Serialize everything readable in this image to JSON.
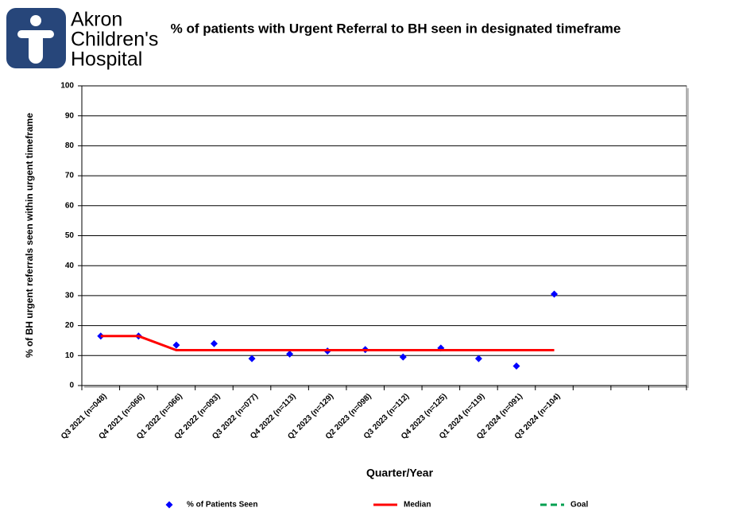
{
  "logo": {
    "lines": [
      "Akron",
      "Children's",
      "Hospital"
    ]
  },
  "chart_data": {
    "type": "line",
    "title": "% of patients with Urgent Referral to BH seen in designated timeframe",
    "x_label": "Quarter/Year",
    "y_label": "% of BH urgent referrals seen within urgent timeframe",
    "categories": [
      "Q3 2021 (n=048)",
      "Q4 2021 (n=066)",
      "Q1 2022 (n=066)",
      "Q2 2022 (n=093)",
      "Q3 2022 (n=077)",
      "Q4 2022 (n=113)",
      "Q1 2023 (n=129)",
      "Q2 2023 (n=098)",
      "Q3 2023 (n=112)",
      "Q4 2023  (n=125)",
      "Q1 2024  (n=119)",
      "Q2 2024 (n=091)",
      "Q3 2024 (n=104)",
      null,
      null,
      null
    ],
    "series": [
      {
        "name": "% of Patients Seen",
        "color": "#0000ff",
        "marker": "diamond",
        "values": [
          16.5,
          16.5,
          13.5,
          14,
          9,
          10.5,
          11.5,
          12,
          9.5,
          12.5,
          9,
          6.5,
          30.5,
          null,
          null,
          null
        ]
      },
      {
        "name": "Median",
        "color": "#ff0000",
        "values": [
          16.5,
          16.5,
          11.8,
          11.8,
          11.8,
          11.8,
          11.8,
          11.8,
          11.8,
          11.8,
          11.8,
          11.8,
          11.8,
          null,
          null,
          null
        ]
      },
      {
        "name": "Goal",
        "color": "#00a050",
        "dashed": true,
        "values": [
          null,
          null,
          null,
          null,
          null,
          null,
          null,
          null,
          null,
          null,
          null,
          null,
          null,
          null,
          null,
          null
        ]
      }
    ],
    "ylim": [
      0,
      100
    ],
    "yticks": [
      0,
      10,
      20,
      30,
      40,
      50,
      60,
      70,
      80,
      90,
      100
    ],
    "grid": true,
    "legend": "bottom"
  }
}
